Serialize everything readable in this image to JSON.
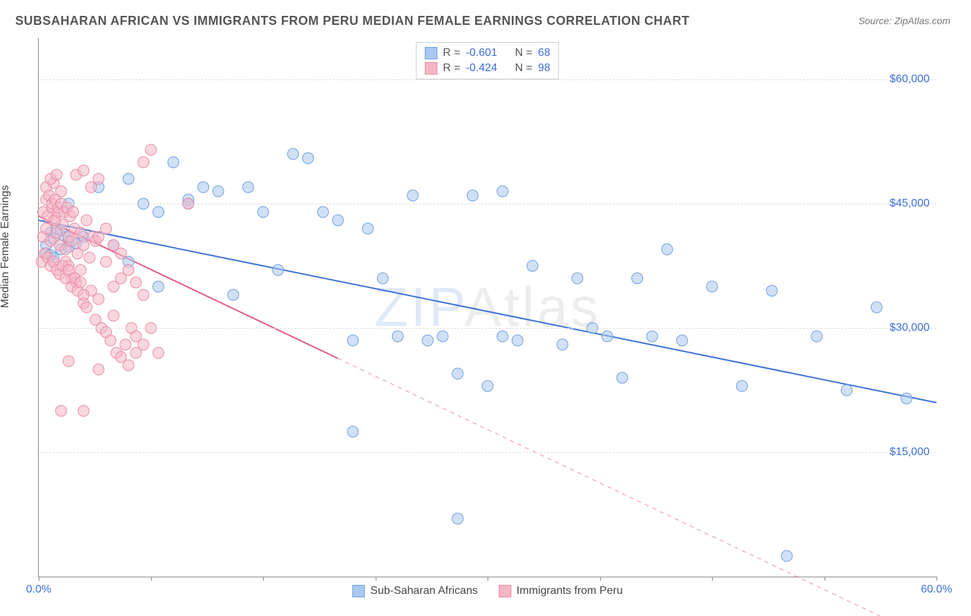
{
  "title": "SUBSAHARAN AFRICAN VS IMMIGRANTS FROM PERU MEDIAN FEMALE EARNINGS CORRELATION CHART",
  "source_prefix": "Source: ",
  "source_name": "ZipAtlas.com",
  "ylabel": "Median Female Earnings",
  "watermark_a": "ZIP",
  "watermark_b": "Atlas",
  "chart": {
    "type": "scatter",
    "background_color": "#ffffff",
    "grid_color": "#dddddd",
    "axis_color": "#888888",
    "xlim": [
      0,
      60
    ],
    "ylim": [
      0,
      65000
    ],
    "x_ticks": [
      0,
      7.5,
      15,
      22.5,
      30,
      37.5,
      45,
      52.5,
      60
    ],
    "x_tick_labels": {
      "0": "0.0%",
      "60": "60.0%"
    },
    "x_label_color": "#3b6fd8",
    "y_grid": [
      15000,
      30000,
      45000,
      60000
    ],
    "y_tick_labels": {
      "15000": "$15,000",
      "30000": "$30,000",
      "45000": "$45,000",
      "60000": "$60,000"
    },
    "y_label_color": "#3b6fd8",
    "marker_radius": 8,
    "marker_opacity": 0.55,
    "line_width": 2,
    "series": [
      {
        "key": "blue",
        "label": "Sub-Saharan Africans",
        "R": "-0.601",
        "N": "68",
        "fill": "#a9c7ef",
        "stroke": "#6f9fe0",
        "line_color": "#3b6fd8",
        "trend": {
          "x1": 0,
          "y1": 43000,
          "x2": 60,
          "y2": 21000,
          "solid_until_x": 60
        },
        "points": [
          [
            0.5,
            40000
          ],
          [
            0.8,
            41500
          ],
          [
            1.0,
            38500
          ],
          [
            1.2,
            42000
          ],
          [
            1.5,
            39500
          ],
          [
            1.8,
            41000
          ],
          [
            2.0,
            40500
          ],
          [
            0.5,
            39000
          ],
          [
            1.0,
            40800
          ],
          [
            1.5,
            41800
          ],
          [
            2.0,
            39800
          ],
          [
            2.5,
            40200
          ],
          [
            0.8,
            38800
          ],
          [
            3,
            41000
          ],
          [
            4,
            47000
          ],
          [
            5,
            40000
          ],
          [
            6,
            38000
          ],
          [
            7,
            45000
          ],
          [
            8,
            35000
          ],
          [
            9,
            50000
          ],
          [
            10,
            45000
          ],
          [
            11,
            47000
          ],
          [
            12,
            46500
          ],
          [
            13,
            34000
          ],
          [
            14,
            47000
          ],
          [
            15,
            44000
          ],
          [
            16,
            37000
          ],
          [
            17,
            51000
          ],
          [
            18,
            50500
          ],
          [
            19,
            44000
          ],
          [
            20,
            43000
          ],
          [
            21,
            28500
          ],
          [
            21,
            17500
          ],
          [
            22,
            42000
          ],
          [
            23,
            36000
          ],
          [
            24,
            29000
          ],
          [
            25,
            46000
          ],
          [
            26,
            28500
          ],
          [
            27,
            29000
          ],
          [
            28,
            7000
          ],
          [
            28,
            24500
          ],
          [
            30,
            23000
          ],
          [
            31,
            29000
          ],
          [
            32,
            28500
          ],
          [
            33,
            37500
          ],
          [
            35,
            28000
          ],
          [
            36,
            36000
          ],
          [
            37,
            30000
          ],
          [
            38,
            29000
          ],
          [
            39,
            24000
          ],
          [
            40,
            36000
          ],
          [
            41,
            29000
          ],
          [
            42,
            39500
          ],
          [
            43,
            28500
          ],
          [
            45,
            35000
          ],
          [
            47,
            23000
          ],
          [
            49,
            34500
          ],
          [
            50,
            2500
          ],
          [
            52,
            29000
          ],
          [
            54,
            22500
          ],
          [
            56,
            32500
          ],
          [
            58,
            21500
          ],
          [
            10,
            45500
          ],
          [
            8,
            44000
          ],
          [
            6,
            48000
          ],
          [
            29,
            46000
          ],
          [
            31,
            46500
          ],
          [
            2,
            45000
          ]
        ]
      },
      {
        "key": "pink",
        "label": "Immigrants from Peru",
        "R": "-0.424",
        "N": "98",
        "fill": "#f5b6c6",
        "stroke": "#e88aa3",
        "line_color": "#e35b82",
        "trend": {
          "x1": 0,
          "y1": 43500,
          "x2": 60,
          "y2": -8000,
          "solid_until_x": 20
        },
        "points": [
          [
            0.3,
            41000
          ],
          [
            0.5,
            42000
          ],
          [
            0.8,
            40500
          ],
          [
            1.0,
            43000
          ],
          [
            1.2,
            41500
          ],
          [
            1.4,
            40000
          ],
          [
            1.6,
            42500
          ],
          [
            1.8,
            39500
          ],
          [
            2.0,
            41000
          ],
          [
            2.2,
            40500
          ],
          [
            2.4,
            42000
          ],
          [
            2.6,
            39000
          ],
          [
            2.8,
            41500
          ],
          [
            3.0,
            40000
          ],
          [
            3.2,
            43000
          ],
          [
            3.4,
            38500
          ],
          [
            3.6,
            41000
          ],
          [
            3.8,
            40500
          ],
          [
            0.5,
            47000
          ],
          [
            1.0,
            47500
          ],
          [
            1.5,
            46500
          ],
          [
            0.8,
            48000
          ],
          [
            1.2,
            48500
          ],
          [
            0.3,
            44000
          ],
          [
            0.6,
            43500
          ],
          [
            0.9,
            44500
          ],
          [
            1.1,
            43000
          ],
          [
            1.3,
            44000
          ],
          [
            1.8,
            38000
          ],
          [
            2.0,
            37500
          ],
          [
            2.2,
            36000
          ],
          [
            2.5,
            35500
          ],
          [
            2.8,
            37000
          ],
          [
            3.0,
            33000
          ],
          [
            3.2,
            32500
          ],
          [
            3.5,
            34500
          ],
          [
            3.8,
            31000
          ],
          [
            4.0,
            33500
          ],
          [
            4.2,
            30000
          ],
          [
            4.5,
            29500
          ],
          [
            4.8,
            28500
          ],
          [
            5.0,
            31500
          ],
          [
            5.2,
            27000
          ],
          [
            5.5,
            26500
          ],
          [
            5.8,
            28000
          ],
          [
            6.0,
            25500
          ],
          [
            6.2,
            30000
          ],
          [
            6.5,
            27000
          ],
          [
            1.5,
            20000
          ],
          [
            3.0,
            20000
          ],
          [
            2.0,
            26000
          ],
          [
            4.0,
            25000
          ],
          [
            0.2,
            38000
          ],
          [
            0.4,
            39000
          ],
          [
            0.6,
            38500
          ],
          [
            0.8,
            37500
          ],
          [
            1.0,
            38000
          ],
          [
            1.2,
            37000
          ],
          [
            1.4,
            36500
          ],
          [
            1.6,
            37500
          ],
          [
            1.8,
            36000
          ],
          [
            2.0,
            37000
          ],
          [
            2.2,
            35000
          ],
          [
            2.4,
            36000
          ],
          [
            2.6,
            34500
          ],
          [
            2.8,
            35500
          ],
          [
            3.0,
            34000
          ],
          [
            0.5,
            45500
          ],
          [
            0.7,
            46000
          ],
          [
            0.9,
            45000
          ],
          [
            1.1,
            45500
          ],
          [
            1.3,
            44500
          ],
          [
            1.5,
            45000
          ],
          [
            1.7,
            44000
          ],
          [
            1.9,
            44500
          ],
          [
            2.1,
            43500
          ],
          [
            2.3,
            44000
          ],
          [
            5.0,
            35000
          ],
          [
            5.5,
            36000
          ],
          [
            6.0,
            37000
          ],
          [
            6.5,
            35500
          ],
          [
            7.0,
            34000
          ],
          [
            7.0,
            50000
          ],
          [
            7.5,
            51500
          ],
          [
            10,
            45000
          ],
          [
            4.0,
            41000
          ],
          [
            4.5,
            42000
          ],
          [
            3.5,
            47000
          ],
          [
            4.0,
            48000
          ],
          [
            2.5,
            48500
          ],
          [
            3.0,
            49000
          ],
          [
            6.5,
            29000
          ],
          [
            7.0,
            28000
          ],
          [
            7.5,
            30000
          ],
          [
            8.0,
            27000
          ],
          [
            5.0,
            40000
          ],
          [
            4.5,
            38000
          ],
          [
            5.5,
            39000
          ]
        ]
      }
    ],
    "legend_top": {
      "r_label": "R = ",
      "n_label": "N = ",
      "text_color": "#555555",
      "value_color": "#3b6fd8"
    }
  }
}
